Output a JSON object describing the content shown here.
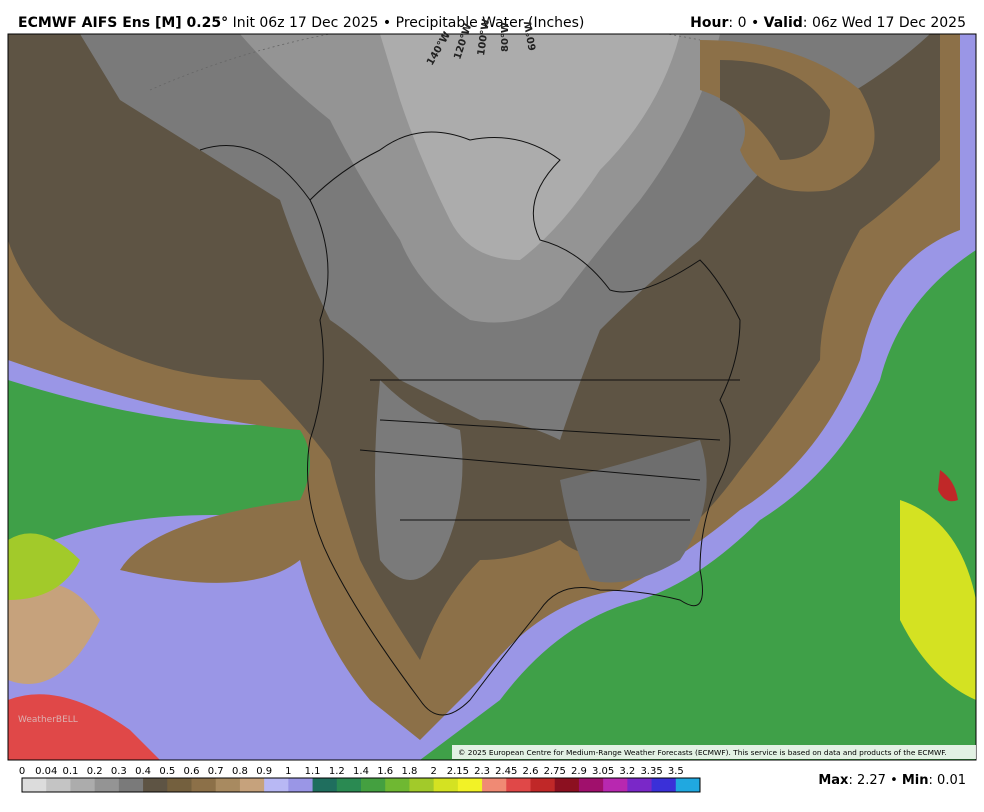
{
  "header": {
    "title": "ECMWF AIFS Ens [M] 0.25°",
    "init": "Init 06z 17 Dec 2025",
    "separator": "•",
    "field": "Precipitable Water (Inches)",
    "hour_label": "Hour",
    "hour": "0",
    "valid_label": "Valid",
    "valid": "06z Wed 17 Dec 2025"
  },
  "map": {
    "longitude_labels": [
      "140°W",
      "120°W",
      "100°W",
      "80°W",
      "60°W"
    ],
    "copyright": "© 2025 European Centre for Medium-Range Weather Forecasts (ECMWF). This service is based on data and products of the ECMWF.",
    "logo": "WeatherBELL"
  },
  "colorbar": {
    "labels": [
      "0",
      "0.04",
      "0.1",
      "0.2",
      "0.3",
      "0.4",
      "0.5",
      "0.6",
      "0.7",
      "0.8",
      "0.9",
      "1",
      "1.1",
      "1.2",
      "1.4",
      "1.6",
      "1.8",
      "2",
      "2.15",
      "2.3",
      "2.45",
      "2.6",
      "2.75",
      "2.9",
      "3.05",
      "3.2",
      "3.35",
      "3.5"
    ],
    "colors": [
      "#dcdcdc",
      "#c4c4c4",
      "#acacac",
      "#949494",
      "#7a7a7a",
      "#5e5444",
      "#74603e",
      "#8c7048",
      "#a88a60",
      "#c6a27c",
      "#b8b8f4",
      "#9a96e6",
      "#1f6e5e",
      "#2a8a52",
      "#44a040",
      "#6fb832",
      "#a2ca2a",
      "#d4e222",
      "#f2f226",
      "#f08a74",
      "#e04848",
      "#c02828",
      "#8c1020",
      "#a0106c",
      "#b828b0",
      "#7a28c8",
      "#3a30d8",
      "#20a8e0"
    ]
  },
  "footer": {
    "max_label": "Max",
    "max": "2.27",
    "separator": "•",
    "min_label": "Min",
    "min": "0.01"
  }
}
